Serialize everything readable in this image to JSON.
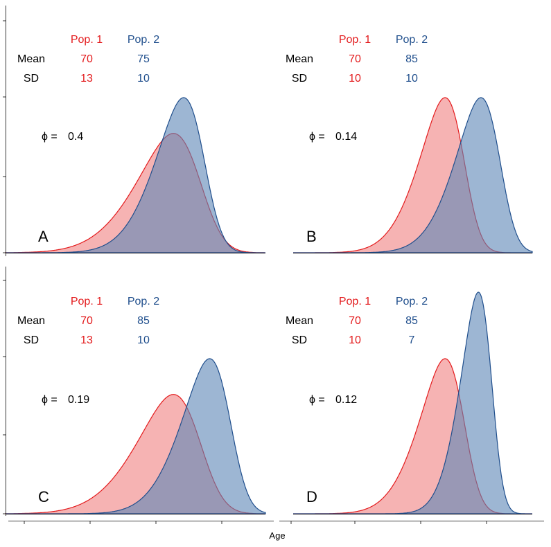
{
  "colors": {
    "pop1": "#E31A1C",
    "pop2": "#1F4E8C",
    "pop1_fill": "#F08080",
    "pop2_fill": "#5B86B5",
    "black": "#000000"
  },
  "row_labels": {
    "mean": "Mean",
    "sd": "SD"
  },
  "phi_symbol": "ϕ =",
  "xlabel": "Age",
  "chart_data": [
    {
      "type": "area",
      "panel": "A",
      "legend": [
        "Pop. 1",
        "Pop. 2"
      ],
      "series": [
        {
          "name": "Pop. 1",
          "mean": 70,
          "sd": 13
        },
        {
          "name": "Pop. 2",
          "mean": 75,
          "sd": 10
        }
      ],
      "phi": "0.4",
      "skew_alpha": -2.5,
      "xlim": [
        10,
        110
      ]
    },
    {
      "type": "area",
      "panel": "B",
      "legend": [
        "Pop. 1",
        "Pop. 2"
      ],
      "series": [
        {
          "name": "Pop. 1",
          "mean": 70,
          "sd": 10
        },
        {
          "name": "Pop. 2",
          "mean": 85,
          "sd": 10
        }
      ],
      "phi": "0.14",
      "skew_alpha": -2.5,
      "xlim": [
        10,
        110
      ]
    },
    {
      "type": "area",
      "panel": "C",
      "legend": [
        "Pop. 1",
        "Pop. 2"
      ],
      "series": [
        {
          "name": "Pop. 1",
          "mean": 70,
          "sd": 13
        },
        {
          "name": "Pop. 2",
          "mean": 85,
          "sd": 10
        }
      ],
      "phi": "0.19",
      "skew_alpha": -2.5,
      "xlim": [
        10,
        110
      ]
    },
    {
      "type": "area",
      "panel": "D",
      "legend": [
        "Pop. 1",
        "Pop. 2"
      ],
      "series": [
        {
          "name": "Pop. 1",
          "mean": 70,
          "sd": 10
        },
        {
          "name": "Pop. 2",
          "mean": 85,
          "sd": 7
        }
      ],
      "phi": "0.12",
      "skew_alpha": -2.5,
      "xlim": [
        10,
        110
      ]
    }
  ]
}
